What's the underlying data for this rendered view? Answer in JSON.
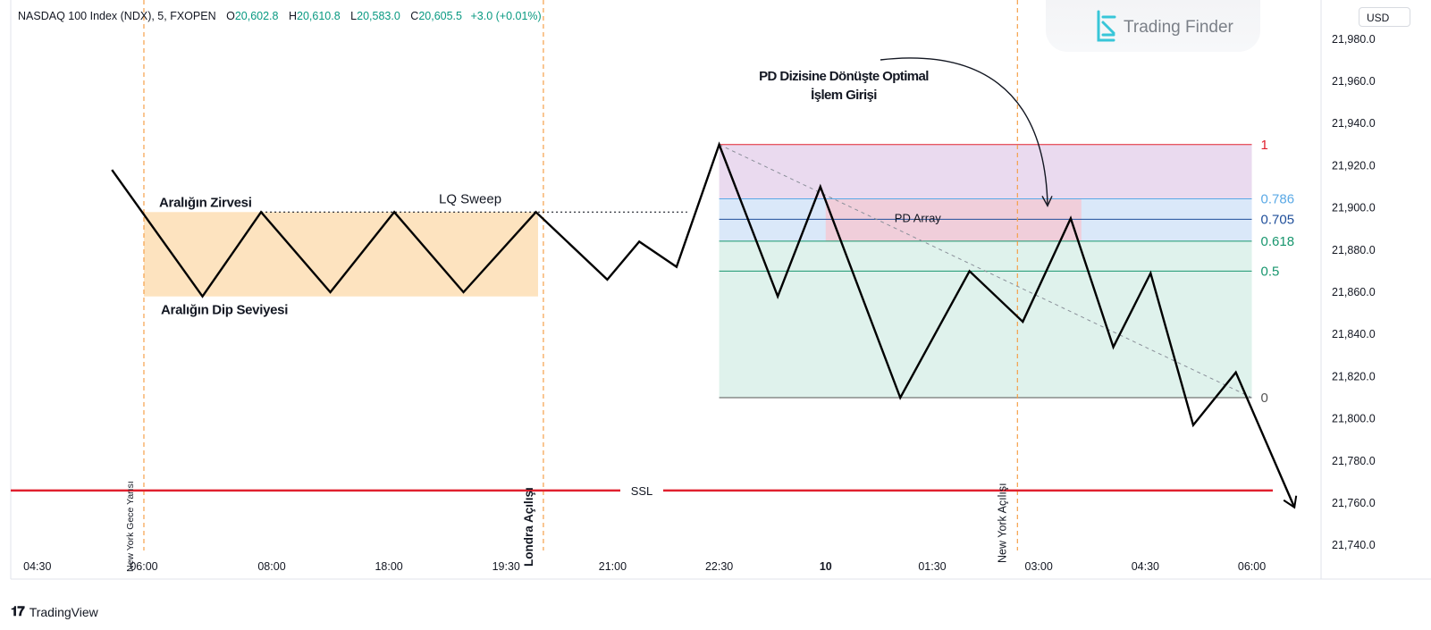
{
  "header": {
    "symbol": "NASDAQ 100 Index (NDX), 5, FXOPEN",
    "o_label": "O",
    "o_value": "20,602.8",
    "h_label": "H",
    "h_value": "20,610.8",
    "l_label": "L",
    "l_value": "20,583.0",
    "c_label": "C",
    "c_value": "20,605.5",
    "change": "+3.0 (+0.01%)"
  },
  "watermark": {
    "brand": "Trading Finder"
  },
  "currency_button": "USD",
  "footer": {
    "brand": "TradingView"
  },
  "colors": {
    "up": "#089981",
    "ssl": "#e0202e",
    "session_line": "#f5a04a",
    "range_box": "#fde3bf",
    "premium_zone": "#e6d3ec",
    "discount_zone": "#dff2ec",
    "pd_array": "#f2cbd6",
    "level_786": "#5aa9e6",
    "level_705": "#1f4e9a",
    "level_618": "#18966e",
    "level_05": "#18966e",
    "level_1": "#e0202e"
  },
  "chart_data": {
    "type": "line",
    "title": "",
    "xlabel": "",
    "ylabel": "",
    "ylim": [
      21724,
      21996
    ],
    "price_axis_ticks": [
      "21,980.0",
      "21,960.0",
      "21,940.0",
      "21,920.0",
      "21,900.0",
      "21,880.0",
      "21,860.0",
      "21,840.0",
      "21,820.0",
      "21,800.0",
      "21,780.0",
      "21,760.0",
      "21,740.0"
    ],
    "price_axis_values": [
      21980,
      21960,
      21940,
      21920,
      21900,
      21880,
      21860,
      21840,
      21820,
      21800,
      21780,
      21760,
      21740
    ],
    "time_ticks": [
      {
        "label": "04:30",
        "t": 0.2
      },
      {
        "label": "06:00",
        "t": 1.2
      },
      {
        "label": "08:00",
        "t": 2.4
      },
      {
        "label": "18:00",
        "t": 3.5
      },
      {
        "label": "19:30",
        "t": 4.6
      },
      {
        "label": "21:00",
        "t": 5.6
      },
      {
        "label": "22:30",
        "t": 6.6
      },
      {
        "label": "10",
        "t": 7.6,
        "bold": true
      },
      {
        "label": "01:30",
        "t": 8.6
      },
      {
        "label": "03:00",
        "t": 9.6
      },
      {
        "label": "04:30",
        "t": 10.6
      },
      {
        "label": "06:00",
        "t": 11.6
      }
    ],
    "price_path": [
      {
        "t": 0.9,
        "y": 21918
      },
      {
        "t": 1.75,
        "y": 21858
      },
      {
        "t": 2.3,
        "y": 21898
      },
      {
        "t": 2.95,
        "y": 21860
      },
      {
        "t": 3.55,
        "y": 21898
      },
      {
        "t": 4.2,
        "y": 21860
      },
      {
        "t": 4.88,
        "y": 21898
      },
      {
        "t": 5.55,
        "y": 21866
      },
      {
        "t": 5.85,
        "y": 21884
      },
      {
        "t": 6.2,
        "y": 21872
      },
      {
        "t": 6.6,
        "y": 21930
      },
      {
        "t": 7.15,
        "y": 21858
      },
      {
        "t": 7.55,
        "y": 21910
      },
      {
        "t": 8.3,
        "y": 21810
      },
      {
        "t": 8.95,
        "y": 21870
      },
      {
        "t": 9.45,
        "y": 21846
      },
      {
        "t": 9.9,
        "y": 21895
      },
      {
        "t": 10.3,
        "y": 21834
      },
      {
        "t": 10.65,
        "y": 21869
      },
      {
        "t": 11.05,
        "y": 21797
      },
      {
        "t": 11.45,
        "y": 21822
      },
      {
        "t": 12.0,
        "y": 21758
      }
    ],
    "fib_levels": [
      {
        "ratio": "1",
        "value": 21930
      },
      {
        "ratio": "0.786",
        "value": 21904.3
      },
      {
        "ratio": "0.705",
        "value": 21894.6
      },
      {
        "ratio": "0.618",
        "value": 21884.2
      },
      {
        "ratio": "0.5",
        "value": 21870
      },
      {
        "ratio": "0",
        "value": 21810
      }
    ],
    "fib_t_range": [
      6.6,
      11.6
    ],
    "range_box": {
      "t0": 1.2,
      "t1": 4.9,
      "top": 21898,
      "bottom": 21858
    },
    "pd_array": {
      "t0": 7.6,
      "t1": 10.0,
      "top": 21904.3,
      "bottom": 21884.2,
      "label": "PD Array"
    },
    "ssl": {
      "value": 21766,
      "label": "SSL"
    },
    "liquidity_line": {
      "t0": 2.3,
      "t1": 6.3,
      "value": 21898
    },
    "session_lines": [
      {
        "t": 1.2,
        "label": "New York Gece Yarısı"
      },
      {
        "t": 4.95,
        "label": "Londra Açılışı"
      },
      {
        "t": 9.4,
        "label": "New York Açılışı"
      }
    ],
    "annotations": {
      "range_high": "Aralığın Zirvesi",
      "range_low": "Aralığın Dip Seviyesi",
      "sweep": "LQ Sweep",
      "entry_line1": "PD Dizisine Dönüşte Optimal",
      "entry_line2": "İşlem Girişi"
    }
  }
}
